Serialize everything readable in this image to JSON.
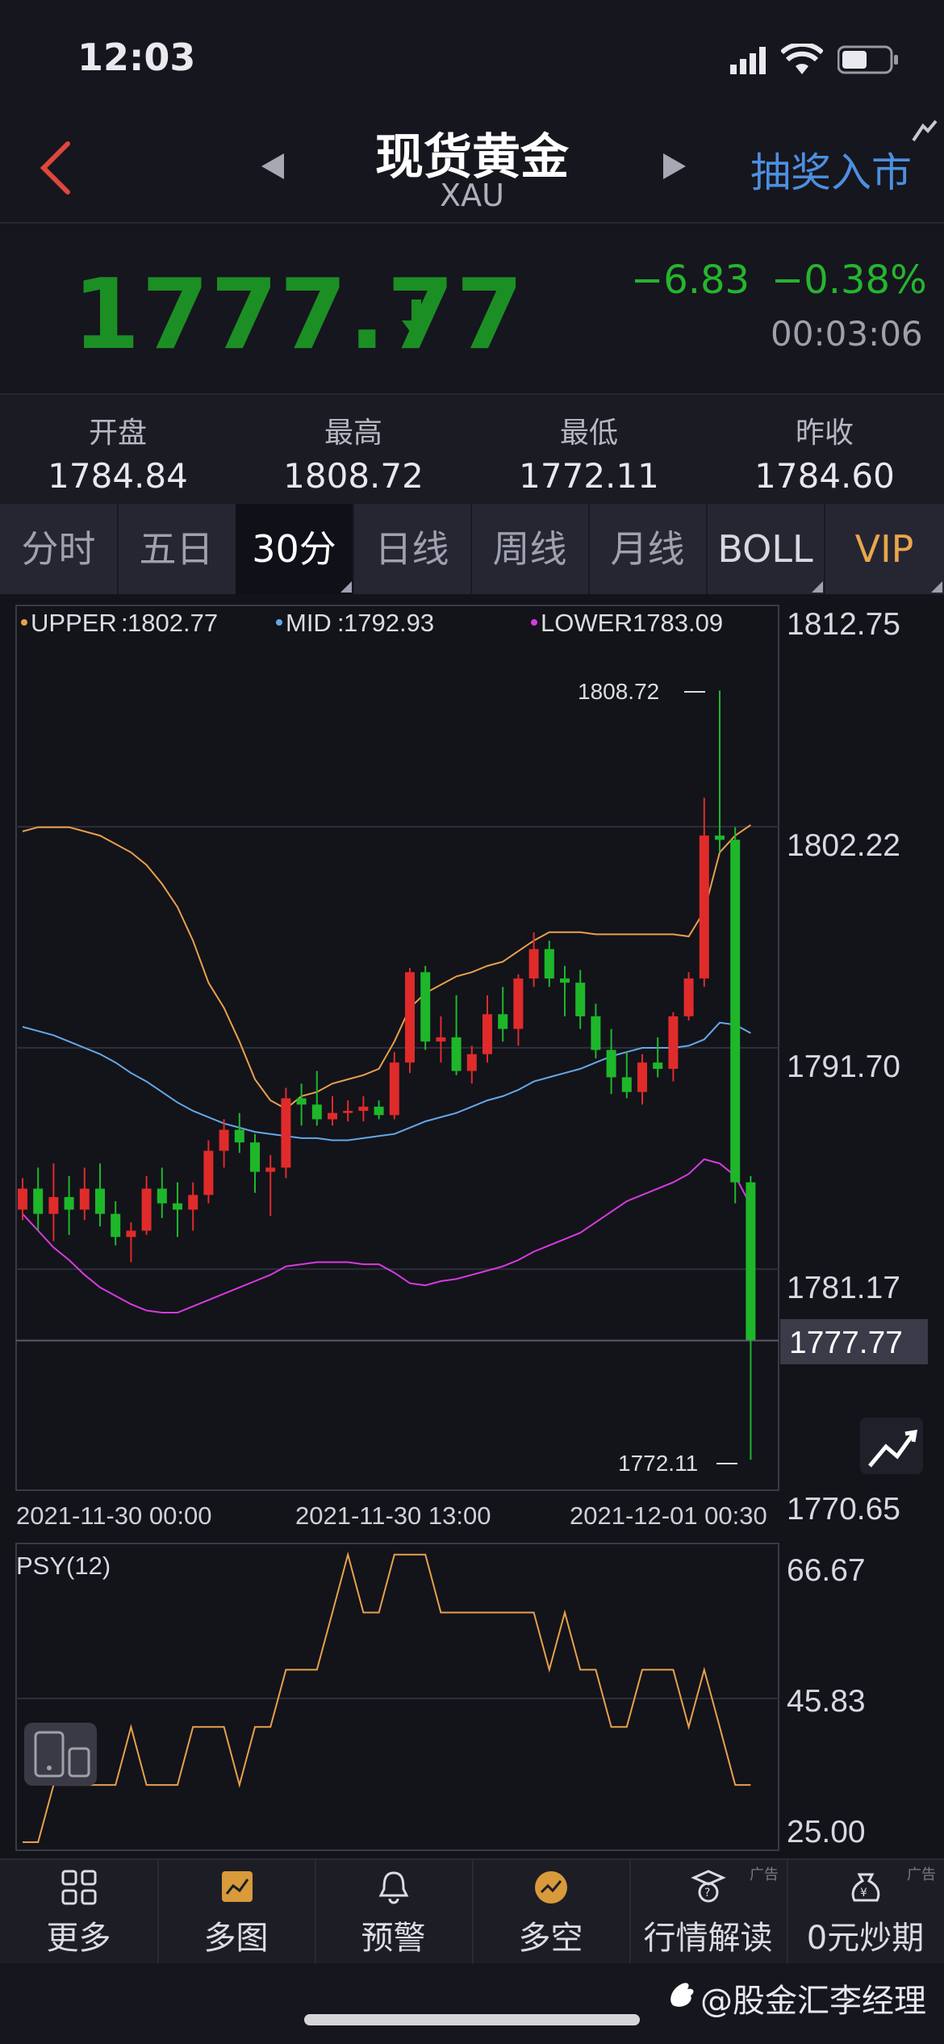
{
  "status_bar": {
    "time": "12:03"
  },
  "header": {
    "title": "现货黄金",
    "symbol": "XAU",
    "action_link": "抽奖入市"
  },
  "quote": {
    "price": "1777.77",
    "change": "−6.83",
    "change_pct": "−0.38%",
    "timestamp": "00:03:06"
  },
  "stats": [
    {
      "label": "开盘",
      "value": "1784.84"
    },
    {
      "label": "最高",
      "value": "1808.72"
    },
    {
      "label": "最低",
      "value": "1772.11"
    },
    {
      "label": "昨收",
      "value": "1784.60"
    }
  ],
  "tabs": [
    {
      "label": "分时",
      "active": false
    },
    {
      "label": "五日",
      "active": false
    },
    {
      "label": "30分钟",
      "active": true
    },
    {
      "label": "日线",
      "active": false
    },
    {
      "label": "周线",
      "active": false
    },
    {
      "label": "月线",
      "active": false
    },
    {
      "label": "BOLL",
      "active": false
    },
    {
      "label": "VIP",
      "active": false
    }
  ],
  "colors": {
    "up": "#e02b2b",
    "down": "#1eb72a",
    "upper": "#e8a14a",
    "mid": "#63a9e8",
    "lower": "#d63be0",
    "psy": "#e8a14a",
    "vip": "#e8a84a",
    "link": "#4d8fe0",
    "back": "#e0463a"
  },
  "chart_data": {
    "type": "candlestick",
    "legend": [
      {
        "name": "UPPER",
        "value": "1802.77"
      },
      {
        "name": "MID",
        "value": "1792.93"
      },
      {
        "name": "LOWER",
        "value": "1783.09"
      }
    ],
    "y_ticks": [
      "1812.75",
      "1802.22",
      "1791.70",
      "1781.17",
      "1770.65"
    ],
    "ylim": [
      1770.65,
      1812.75
    ],
    "current_price_label": "1777.77",
    "high_label": "1808.72",
    "low_label": "1772.11",
    "x_labels": [
      "2021-11-30 00:00",
      "2021-11-30 13:00",
      "2021-12-01 00:30"
    ],
    "candles": [
      [
        1784.0,
        1785.5,
        1783.5,
        1785.0
      ],
      [
        1785.0,
        1786.0,
        1783.0,
        1783.8
      ],
      [
        1783.8,
        1786.2,
        1782.5,
        1784.6
      ],
      [
        1784.6,
        1785.6,
        1782.8,
        1784.0
      ],
      [
        1784.0,
        1786.0,
        1783.5,
        1785.0
      ],
      [
        1785.0,
        1786.2,
        1783.2,
        1783.8
      ],
      [
        1783.8,
        1784.4,
        1782.3,
        1782.7
      ],
      [
        1782.7,
        1783.4,
        1781.5,
        1783.0
      ],
      [
        1783.0,
        1785.6,
        1782.8,
        1785.0
      ],
      [
        1785.0,
        1786.0,
        1783.6,
        1784.3
      ],
      [
        1784.3,
        1785.3,
        1782.7,
        1784.0
      ],
      [
        1784.0,
        1785.3,
        1783.0,
        1784.7
      ],
      [
        1784.7,
        1787.3,
        1784.3,
        1786.8
      ],
      [
        1786.8,
        1788.3,
        1786.0,
        1787.8
      ],
      [
        1787.8,
        1788.6,
        1786.7,
        1787.2
      ],
      [
        1787.2,
        1787.6,
        1784.8,
        1785.8
      ],
      [
        1785.8,
        1786.6,
        1783.7,
        1786.0
      ],
      [
        1786.0,
        1789.8,
        1785.5,
        1789.3
      ],
      [
        1789.3,
        1790.0,
        1788.0,
        1789.0
      ],
      [
        1789.0,
        1790.6,
        1788.0,
        1788.3
      ],
      [
        1788.3,
        1789.4,
        1788.0,
        1788.6
      ],
      [
        1788.6,
        1789.2,
        1788.2,
        1788.7
      ],
      [
        1788.7,
        1789.4,
        1788.2,
        1788.9
      ],
      [
        1788.9,
        1789.2,
        1788.3,
        1788.5
      ],
      [
        1788.5,
        1791.5,
        1788.3,
        1791.0
      ],
      [
        1791.0,
        1795.5,
        1790.5,
        1795.3
      ],
      [
        1795.3,
        1795.6,
        1791.6,
        1792.0
      ],
      [
        1792.0,
        1793.2,
        1791.0,
        1792.2
      ],
      [
        1792.2,
        1794.2,
        1790.4,
        1790.6
      ],
      [
        1790.6,
        1791.8,
        1790.0,
        1791.4
      ],
      [
        1791.4,
        1794.2,
        1791.0,
        1793.3
      ],
      [
        1793.3,
        1794.6,
        1792.0,
        1792.6
      ],
      [
        1792.6,
        1795.2,
        1791.8,
        1795.0
      ],
      [
        1795.0,
        1797.2,
        1794.6,
        1796.4
      ],
      [
        1796.4,
        1796.8,
        1794.6,
        1795.0
      ],
      [
        1795.0,
        1795.6,
        1793.2,
        1794.8
      ],
      [
        1794.8,
        1795.4,
        1792.6,
        1793.2
      ],
      [
        1793.2,
        1793.8,
        1791.2,
        1791.6
      ],
      [
        1791.6,
        1792.6,
        1789.5,
        1790.3
      ],
      [
        1790.3,
        1791.5,
        1789.3,
        1789.6
      ],
      [
        1789.6,
        1791.4,
        1789.0,
        1791.0
      ],
      [
        1791.0,
        1792.2,
        1790.3,
        1790.7
      ],
      [
        1790.7,
        1793.4,
        1790.1,
        1793.2
      ],
      [
        1793.2,
        1795.3,
        1793.0,
        1795.0
      ],
      [
        1795.0,
        1803.6,
        1794.6,
        1801.8
      ],
      [
        1801.8,
        1808.7,
        1801.0,
        1801.6
      ],
      [
        1801.6,
        1802.2,
        1784.3,
        1785.3
      ],
      [
        1785.3,
        1785.6,
        1772.1,
        1777.8
      ]
    ],
    "boll_upper": [
      1802.0,
      1802.2,
      1802.2,
      1802.2,
      1802.0,
      1801.8,
      1801.4,
      1801.0,
      1800.4,
      1799.5,
      1798.4,
      1796.8,
      1794.8,
      1793.6,
      1792.0,
      1790.2,
      1789.2,
      1788.8,
      1789.4,
      1789.6,
      1790.0,
      1790.2,
      1790.4,
      1790.7,
      1792.0,
      1793.6,
      1794.3,
      1794.7,
      1795.1,
      1795.3,
      1795.6,
      1795.8,
      1796.3,
      1796.8,
      1797.2,
      1797.2,
      1797.2,
      1797.1,
      1797.1,
      1797.1,
      1797.1,
      1797.1,
      1797.1,
      1797.0,
      1798.2,
      1801.0,
      1801.8,
      1802.3
    ],
    "boll_mid": [
      1792.7,
      1792.5,
      1792.3,
      1792.0,
      1791.7,
      1791.4,
      1791.0,
      1790.5,
      1790.1,
      1789.6,
      1789.1,
      1788.7,
      1788.4,
      1788.1,
      1787.9,
      1787.7,
      1787.6,
      1787.5,
      1787.4,
      1787.4,
      1787.3,
      1787.3,
      1787.4,
      1787.5,
      1787.6,
      1787.9,
      1788.2,
      1788.4,
      1788.6,
      1788.9,
      1789.2,
      1789.4,
      1789.7,
      1790.1,
      1790.3,
      1790.5,
      1790.7,
      1791.0,
      1791.3,
      1791.5,
      1791.7,
      1791.7,
      1791.7,
      1791.8,
      1792.1,
      1792.9,
      1792.8,
      1792.4
    ],
    "boll_lower": [
      1783.8,
      1783.0,
      1782.2,
      1781.6,
      1780.9,
      1780.3,
      1779.9,
      1779.5,
      1779.2,
      1779.1,
      1779.1,
      1779.4,
      1779.7,
      1780.0,
      1780.3,
      1780.6,
      1780.9,
      1781.3,
      1781.4,
      1781.5,
      1781.5,
      1781.5,
      1781.4,
      1781.4,
      1781.0,
      1780.5,
      1780.4,
      1780.6,
      1780.7,
      1780.9,
      1781.1,
      1781.3,
      1781.6,
      1782.0,
      1782.3,
      1782.6,
      1782.9,
      1783.4,
      1783.9,
      1784.4,
      1784.7,
      1785.0,
      1785.3,
      1785.7,
      1786.4,
      1786.2,
      1785.6,
      1784.2
    ],
    "psy": {
      "label": "PSY(12)",
      "y_ticks": [
        "66.67",
        "45.83",
        "25.00"
      ],
      "ylim": [
        25.0,
        66.67
      ],
      "values": [
        25.0,
        25.0,
        33.3,
        33.3,
        33.3,
        33.3,
        33.3,
        41.7,
        33.3,
        33.3,
        33.3,
        41.7,
        41.7,
        41.7,
        33.3,
        41.7,
        41.7,
        50.0,
        50.0,
        50.0,
        58.3,
        66.7,
        58.3,
        58.3,
        66.7,
        66.7,
        66.7,
        58.3,
        58.3,
        58.3,
        58.3,
        58.3,
        58.3,
        58.3,
        50.0,
        58.3,
        50.0,
        50.0,
        41.7,
        41.7,
        50.0,
        50.0,
        50.0,
        41.7,
        50.0,
        41.7,
        33.3,
        33.3
      ]
    }
  },
  "bottom_nav": [
    {
      "label": "更多",
      "icon": "grid-icon",
      "ad": ""
    },
    {
      "label": "多图",
      "icon": "multi-chart-icon",
      "ad": ""
    },
    {
      "label": "预警",
      "icon": "bell-icon",
      "ad": ""
    },
    {
      "label": "多空",
      "icon": "bull-bear-icon",
      "ad": ""
    },
    {
      "label": "行情解读",
      "icon": "analysis-icon",
      "ad": "广告"
    },
    {
      "label": "0元炒期",
      "icon": "money-bag-icon",
      "ad": "广告"
    }
  ],
  "watermark": "@股金汇李经理"
}
